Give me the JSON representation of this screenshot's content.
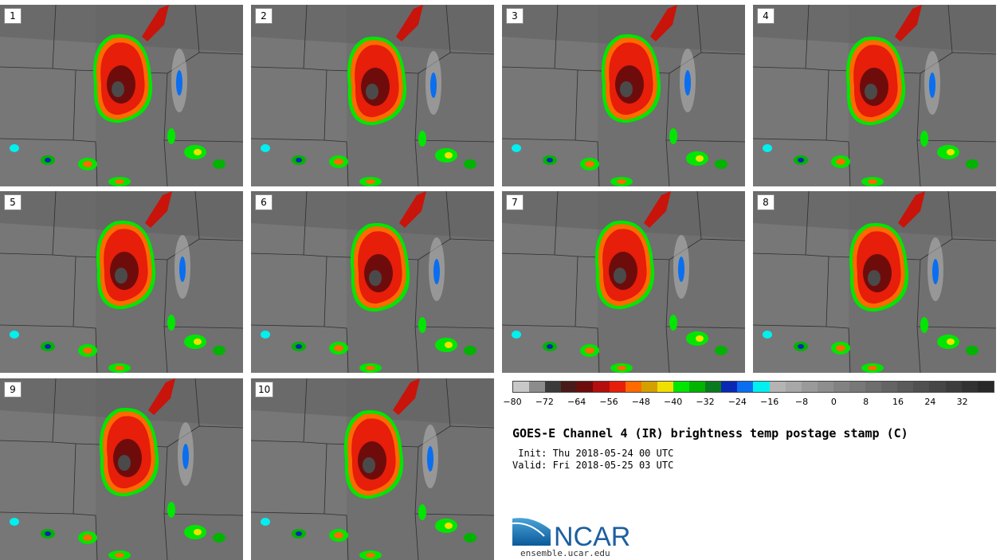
{
  "panels": [
    "1",
    "2",
    "3",
    "4",
    "5",
    "6",
    "7",
    "8",
    "9",
    "10"
  ],
  "colorbar": {
    "colors": [
      "#c8c8c8",
      "#8c8c8c",
      "#3a3a3a",
      "#4a1a1a",
      "#6e0c0c",
      "#b40e0e",
      "#e61e0a",
      "#ff6a00",
      "#d4a000",
      "#f0e000",
      "#00e600",
      "#00b400",
      "#0a7a1e",
      "#0a28b4",
      "#0a6ef0",
      "#00f0f0",
      "#b4b4b4",
      "#a8a8a8",
      "#9a9a9a",
      "#8e8e8e",
      "#828282",
      "#787878",
      "#6e6e6e",
      "#646464",
      "#5a5a5a",
      "#505050",
      "#464646",
      "#3c3c3c",
      "#323232",
      "#282828"
    ],
    "tick_labels": [
      "−80",
      "−72",
      "−64",
      "−56",
      "−48",
      "−40",
      "−32",
      "−24",
      "−16",
      "−8",
      "0",
      "8",
      "16",
      "24",
      "32"
    ]
  },
  "title": "GOES-E Channel 4 (IR) brightness temp postage stamp (C)",
  "init": " Init: Thu 2018-05-24 00 UTC",
  "valid": "Valid: Fri 2018-05-25 03 UTC",
  "logo_text": "NCAR",
  "url": "ensemble.ucar.edu"
}
